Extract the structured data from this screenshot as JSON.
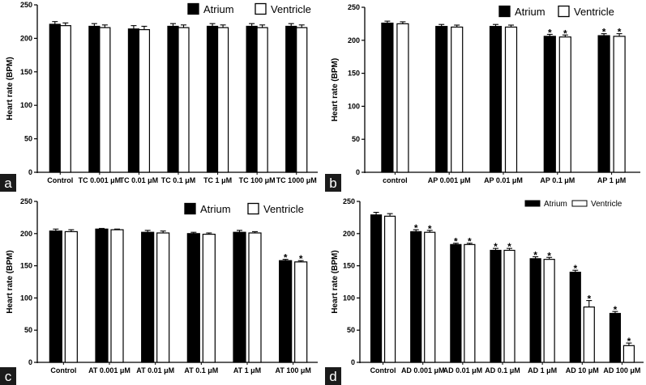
{
  "chart_data": [
    {
      "type": "bar",
      "panel_label": "a",
      "ylabel": "Heart rate (BPM)",
      "ylim": [
        0,
        250
      ],
      "yticks": [
        "0",
        "50",
        "100",
        "150",
        "200",
        "250"
      ],
      "categories": [
        "Control",
        "TC 0.001 μM",
        "TC 0.01 μM",
        "TC 0.1 μM",
        "TC 1 μM",
        "TC 100 μM",
        "TC 1000 μM"
      ],
      "series": [
        {
          "name": "Atrium",
          "color": "#000000",
          "values": [
            221,
            218,
            214,
            218,
            218,
            218,
            218
          ],
          "errors": [
            4,
            4,
            5,
            4,
            4,
            4,
            4
          ],
          "significant": [
            false,
            false,
            false,
            false,
            false,
            false,
            false
          ]
        },
        {
          "name": "Ventricle",
          "color": "#ffffff",
          "values": [
            219,
            216,
            213,
            216,
            216,
            216,
            216
          ],
          "errors": [
            4,
            4,
            5,
            4,
            4,
            4,
            4
          ],
          "significant": [
            false,
            false,
            false,
            false,
            false,
            false,
            false
          ]
        }
      ],
      "legend_position": "top-right",
      "grid": false
    },
    {
      "type": "bar",
      "panel_label": "b",
      "ylabel": "Heart rate (BPM)",
      "ylim": [
        0,
        250
      ],
      "yticks": [
        "0",
        "50",
        "100",
        "150",
        "200",
        "250"
      ],
      "categories": [
        "control",
        "AP 0.001 μM",
        "AP 0.01 μM",
        "AP 0.1 μM",
        "AP 1 μM"
      ],
      "series": [
        {
          "name": "Atrium",
          "color": "#000000",
          "values": [
            226,
            221,
            221,
            206,
            207
          ],
          "errors": [
            3,
            3,
            3,
            3,
            3
          ],
          "significant": [
            false,
            false,
            false,
            true,
            true
          ]
        },
        {
          "name": "Ventricle",
          "color": "#ffffff",
          "values": [
            225,
            220,
            220,
            205,
            206
          ],
          "errors": [
            3,
            3,
            3,
            3,
            4
          ],
          "significant": [
            false,
            false,
            false,
            true,
            true
          ]
        }
      ],
      "legend_position": "top-right",
      "grid": false
    },
    {
      "type": "bar",
      "panel_label": "c",
      "ylabel": "Heart rate (BPM)",
      "ylim": [
        0,
        250
      ],
      "yticks": [
        "0",
        "50",
        "100",
        "150",
        "200",
        "250"
      ],
      "categories": [
        "Control",
        "AT 0.001 μM",
        "AT 0.01 μM",
        "AT 0.1 μM",
        "AT 1 μM",
        "AT 100 μM"
      ],
      "series": [
        {
          "name": "Atrium",
          "color": "#000000",
          "values": [
            204,
            207,
            202,
            200,
            202,
            158
          ],
          "errors": [
            3,
            1,
            3,
            2,
            3,
            2
          ],
          "significant": [
            false,
            false,
            false,
            false,
            false,
            true
          ]
        },
        {
          "name": "Ventricle",
          "color": "#ffffff",
          "values": [
            203,
            206,
            201,
            199,
            201,
            156
          ],
          "errors": [
            3,
            1,
            3,
            2,
            2,
            2
          ],
          "significant": [
            false,
            false,
            false,
            false,
            false,
            true
          ]
        }
      ],
      "legend_position": "top-right",
      "grid": false
    },
    {
      "type": "bar",
      "panel_label": "d",
      "ylabel": "Heart rate (BPM)",
      "ylim": [
        0,
        250
      ],
      "yticks": [
        "0",
        "50",
        "100",
        "150",
        "200",
        "250"
      ],
      "categories": [
        "Control",
        "AD 0.001 μM",
        "AD 0.01 μM",
        "AD 0.1 μM",
        "AD 1 μM",
        "AD 10 μM",
        "AD 100 μM"
      ],
      "series": [
        {
          "name": "Atrium",
          "color": "#000000",
          "values": [
            229,
            203,
            183,
            174,
            161,
            140,
            76
          ],
          "errors": [
            4,
            3,
            2,
            3,
            3,
            3,
            3
          ],
          "significant": [
            false,
            true,
            true,
            true,
            true,
            true,
            true
          ]
        },
        {
          "name": "Ventricle",
          "color": "#ffffff",
          "values": [
            227,
            202,
            183,
            174,
            160,
            86,
            26
          ],
          "errors": [
            4,
            3,
            2,
            3,
            3,
            10,
            4
          ],
          "significant": [
            false,
            true,
            true,
            true,
            true,
            true,
            true
          ]
        }
      ],
      "legend_position": "top-right",
      "grid": false
    }
  ],
  "significance_marker": "*"
}
